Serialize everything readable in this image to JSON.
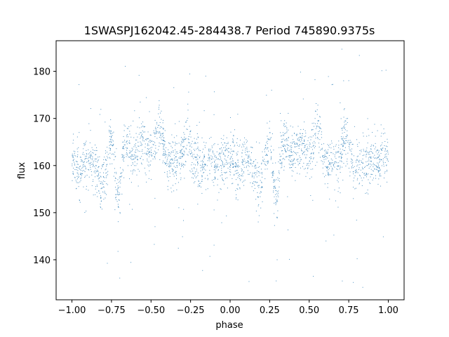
{
  "chart_data": {
    "type": "scatter",
    "title": "1SWASPJ162042.45-284438.7 Period 745890.9375s",
    "xlabel": "phase",
    "ylabel": "flux",
    "xlim": [
      -1.1,
      1.1
    ],
    "ylim": [
      131.5,
      186.5
    ],
    "xticks": [
      -1.0,
      -0.75,
      -0.5,
      -0.25,
      0.0,
      0.25,
      0.5,
      0.75,
      1.0
    ],
    "xtick_labels": [
      "−1.00",
      "−0.75",
      "−0.50",
      "−0.25",
      "0.00",
      "0.25",
      "0.50",
      "0.75",
      "1.00"
    ],
    "yticks": [
      140,
      150,
      160,
      170,
      180
    ],
    "ytick_labels": [
      "140",
      "150",
      "160",
      "170",
      "180"
    ],
    "grid": false,
    "marker_color": "#1f77b4",
    "series_profile": {
      "description_free_points": [
        [
          -1.0,
          162.0
        ],
        [
          -0.97,
          160.5
        ],
        [
          -0.95,
          158.0
        ],
        [
          -0.92,
          160.5
        ],
        [
          -0.88,
          161.0
        ],
        [
          -0.84,
          159.0
        ],
        [
          -0.82,
          155.0
        ],
        [
          -0.8,
          157.0
        ],
        [
          -0.78,
          160.0
        ],
        [
          -0.75,
          167.0
        ],
        [
          -0.72,
          155.0
        ],
        [
          -0.7,
          153.0
        ],
        [
          -0.68,
          163.0
        ],
        [
          -0.65,
          166.0
        ],
        [
          -0.62,
          161.0
        ],
        [
          -0.58,
          163.0
        ],
        [
          -0.55,
          165.0
        ],
        [
          -0.5,
          162.0
        ],
        [
          -0.46,
          167.0
        ],
        [
          -0.44,
          168.0
        ],
        [
          -0.4,
          160.0
        ],
        [
          -0.35,
          160.5
        ],
        [
          -0.31,
          161.0
        ],
        [
          -0.27,
          167.0
        ],
        [
          -0.24,
          161.5
        ],
        [
          -0.2,
          160.5
        ],
        [
          -0.15,
          160.5
        ],
        [
          -0.12,
          161.0
        ],
        [
          -0.08,
          160.0
        ],
        [
          -0.05,
          161.5
        ],
        [
          0.0,
          162.0
        ],
        [
          0.03,
          160.5
        ],
        [
          0.05,
          158.0
        ],
        [
          0.08,
          160.5
        ],
        [
          0.12,
          161.0
        ],
        [
          0.16,
          159.0
        ],
        [
          0.18,
          155.0
        ],
        [
          0.2,
          157.0
        ],
        [
          0.22,
          160.0
        ],
        [
          0.25,
          167.0
        ],
        [
          0.28,
          155.0
        ],
        [
          0.3,
          153.0
        ],
        [
          0.32,
          163.0
        ],
        [
          0.35,
          166.0
        ],
        [
          0.38,
          161.0
        ],
        [
          0.42,
          163.0
        ],
        [
          0.45,
          165.0
        ],
        [
          0.5,
          162.0
        ],
        [
          0.54,
          167.0
        ],
        [
          0.56,
          168.0
        ],
        [
          0.6,
          160.0
        ],
        [
          0.65,
          160.5
        ],
        [
          0.69,
          161.0
        ],
        [
          0.73,
          167.0
        ],
        [
          0.76,
          161.5
        ],
        [
          0.8,
          160.5
        ],
        [
          0.85,
          160.5
        ],
        [
          0.88,
          161.0
        ],
        [
          0.92,
          160.0
        ],
        [
          0.95,
          161.5
        ],
        [
          1.0,
          162.0
        ]
      ]
    }
  }
}
